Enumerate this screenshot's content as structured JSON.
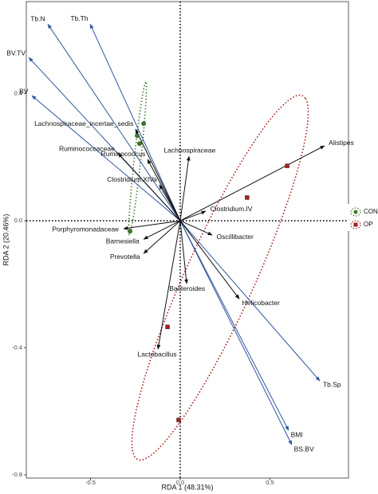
{
  "chart_data": {
    "type": "biplot",
    "x_label": "RDA 1 (48.31%)",
    "y_label": "RDA 2 (20.46%)",
    "xlim": [
      -0.858,
      0.938
    ],
    "ylim": [
      -0.81,
      0.69
    ],
    "xticks": [
      -0.5,
      {
        "value": 0,
        "label": "0.0"
      },
      0.5
    ],
    "yticks": [
      -0.8,
      -0.4,
      {
        "value": 0,
        "label": "0.0"
      },
      0.4
    ],
    "series": [
      {
        "name": "CON",
        "color": "#3d7a2a",
        "shape": "circle",
        "x": [
          -0.204,
          -0.24,
          -0.227,
          -0.28
        ],
        "values": [
          0.306,
          0.268,
          0.243,
          -0.033
        ]
      },
      {
        "name": "OP",
        "color": "#a81c1c",
        "shape": "square",
        "x": [
          0.596,
          0.373,
          -0.071,
          -0.009
        ],
        "values": [
          0.173,
          0.073,
          -0.334,
          -0.627
        ]
      }
    ],
    "env_arrows": {
      "color": "#2f56a0",
      "labels": [
        "Tb.N",
        "Tb.Th",
        "BV.TV",
        "BV",
        "Tb.Sp",
        "BMI",
        "BS.BV"
      ],
      "x": [
        -0.738,
        -0.502,
        -0.844,
        -0.827,
        0.778,
        0.604,
        0.622
      ],
      "values": [
        0.619,
        0.619,
        0.514,
        0.394,
        -0.504,
        -0.66,
        -0.705
      ]
    },
    "species_arrows": {
      "color": "#111111",
      "labels": [
        "Alistipes",
        "Lachnospiraceae_incertae_sedis",
        "Ruminococcus",
        "Ruminococcaceae",
        "Lachnospiraceae",
        "Clostridium.XIVa",
        "Oscillibacter",
        "Clostridium.IV",
        "Porphyromonadaceae",
        "Barnesiella",
        "Prevotella",
        "Bacteroides",
        "Lactobacillus",
        "Helicobacter"
      ],
      "x": [
        0.804,
        -0.249,
        -0.182,
        -0.347,
        0.049,
        -0.116,
        0.178,
        0.142,
        -0.316,
        -0.204,
        -0.204,
        0.036,
        -0.124,
        0.329
      ],
      "values": [
        0.236,
        0.288,
        0.193,
        0.213,
        0.203,
        0.113,
        -0.045,
        0.03,
        -0.025,
        -0.058,
        -0.103,
        -0.198,
        -0.404,
        -0.246
      ]
    }
  }
}
